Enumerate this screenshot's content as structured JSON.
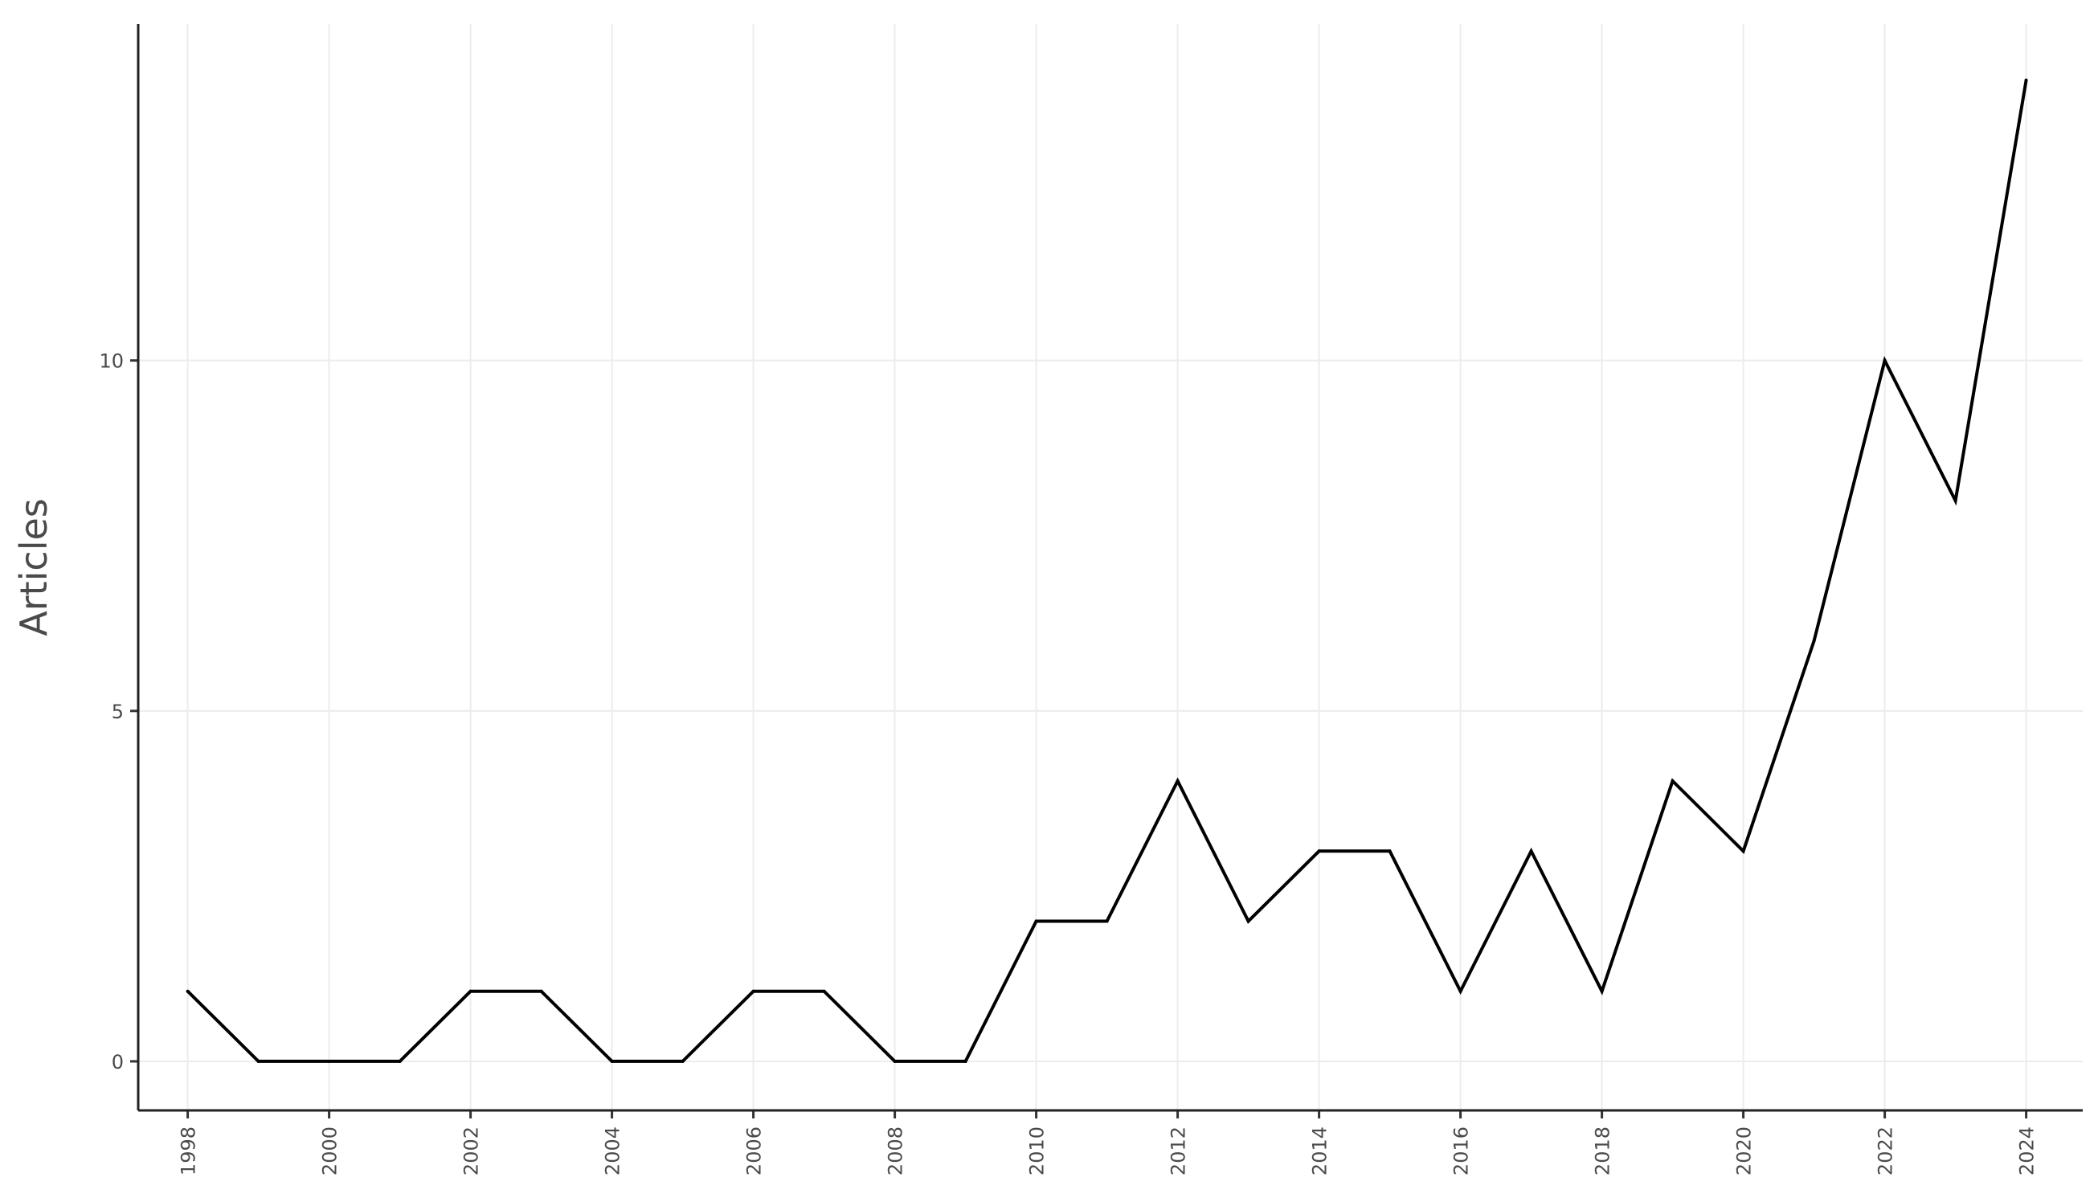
{
  "chart_data": {
    "type": "line",
    "title": "",
    "xlabel": "",
    "ylabel": "Articles",
    "x": [
      1998,
      1999,
      2000,
      2001,
      2002,
      2003,
      2004,
      2005,
      2006,
      2007,
      2008,
      2009,
      2010,
      2011,
      2012,
      2013,
      2014,
      2015,
      2016,
      2017,
      2018,
      2019,
      2020,
      2021,
      2022,
      2023,
      2024
    ],
    "series": [
      {
        "values": [
          1,
          0,
          0,
          0,
          1,
          1,
          0,
          0,
          1,
          1,
          0,
          0,
          2,
          2,
          4,
          2,
          3,
          3,
          1,
          3,
          1,
          4,
          3,
          6,
          10,
          8,
          14
        ],
        "color": "#000000"
      }
    ],
    "xticks": [
      "1998",
      "2000",
      "2002",
      "2004",
      "2006",
      "2008",
      "2010",
      "2012",
      "2014",
      "2016",
      "2018",
      "2020",
      "2022",
      "2024"
    ],
    "yticks": [
      "0",
      "5",
      "10"
    ],
    "xlim": [
      1997.3,
      2024.8
    ],
    "ylim": [
      -0.7,
      14.8
    ],
    "grid": true,
    "legend": "none"
  }
}
